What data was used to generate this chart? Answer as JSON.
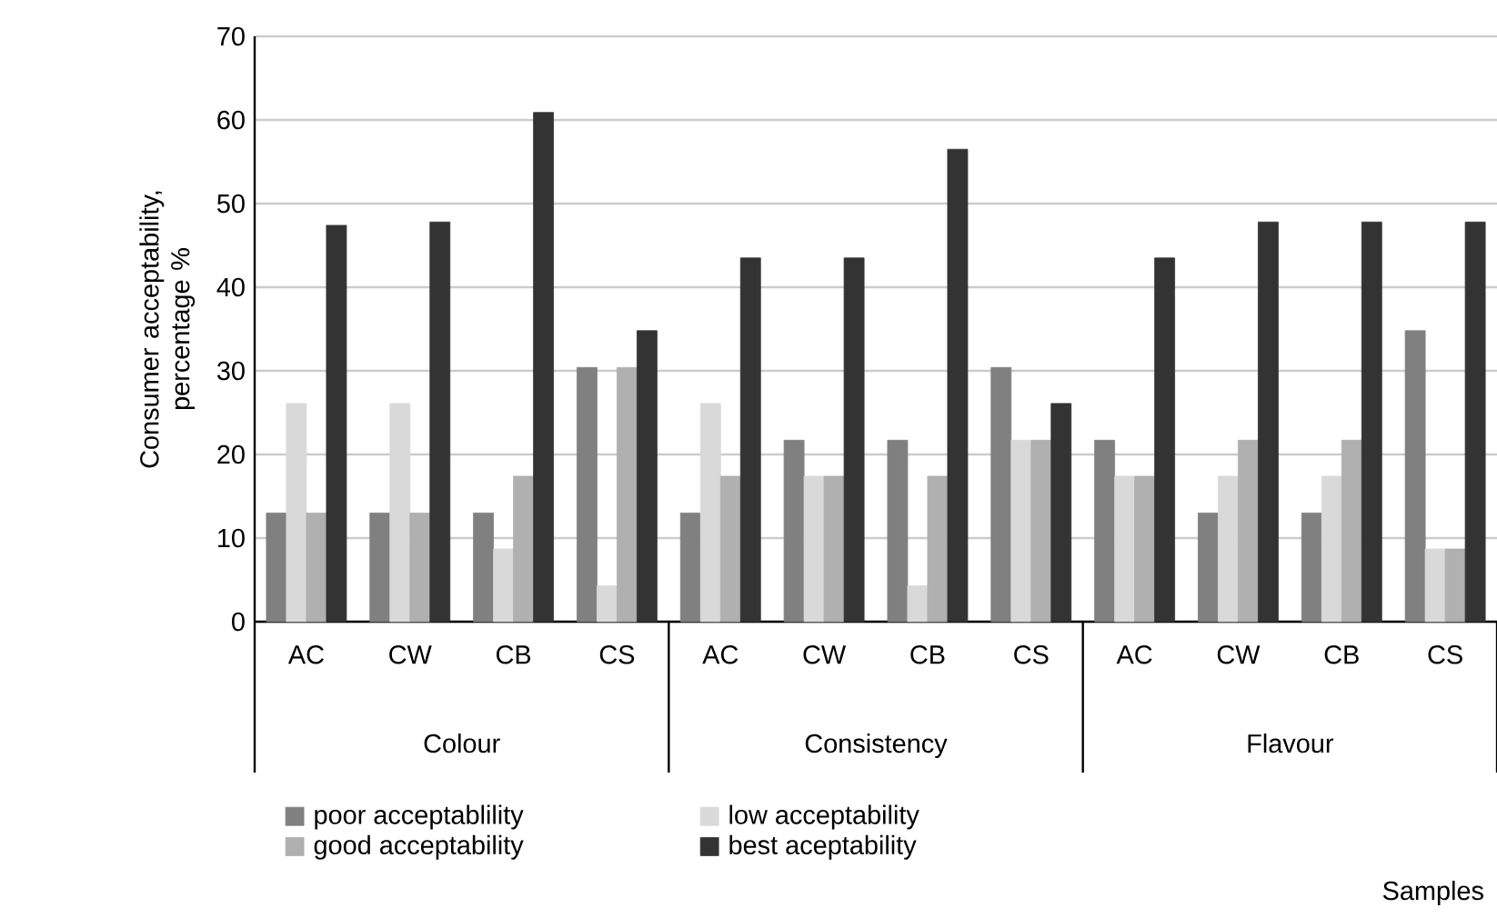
{
  "chart_data": {
    "type": "bar",
    "ylabel": "Consumer acceptability, percentage %",
    "categories": [
      "AC",
      "CW",
      "CB",
      "CS",
      "AC",
      "CW",
      "CB",
      "CS",
      "AC",
      "CW",
      "CB",
      "CS"
    ],
    "annotations": [
      "Colour",
      "Consistency",
      "Flavour",
      "Samples"
    ],
    "series": [
      {
        "name": "poor acceptablility",
        "color": "#808080",
        "values": [
          13.0,
          13.0,
          13.0,
          30.4,
          13.0,
          21.7,
          21.7,
          30.4,
          21.7,
          13.0,
          13.0,
          34.8
        ]
      },
      {
        "name": "low acceptability",
        "color": "#d9d9d9",
        "values": [
          26.1,
          26.1,
          8.7,
          4.3,
          26.1,
          17.4,
          4.3,
          21.7,
          17.4,
          17.4,
          17.4,
          8.7
        ]
      },
      {
        "name": "good acceptability",
        "color": "#b0b0b0",
        "values": [
          13.0,
          13.0,
          17.4,
          30.4,
          17.4,
          17.4,
          17.4,
          21.7,
          17.4,
          21.7,
          21.7,
          8.7
        ]
      },
      {
        "name": "best aceptability",
        "color": "#333333",
        "values": [
          47.4,
          47.8,
          60.9,
          34.8,
          43.5,
          43.5,
          56.5,
          26.1,
          43.5,
          47.8,
          47.8,
          47.8
        ]
      }
    ],
    "ylim": [
      0,
      70
    ],
    "yticks": [
      0,
      10,
      20,
      30,
      40,
      50,
      60,
      70
    ],
    "grid": "y",
    "legend": "bottom"
  }
}
